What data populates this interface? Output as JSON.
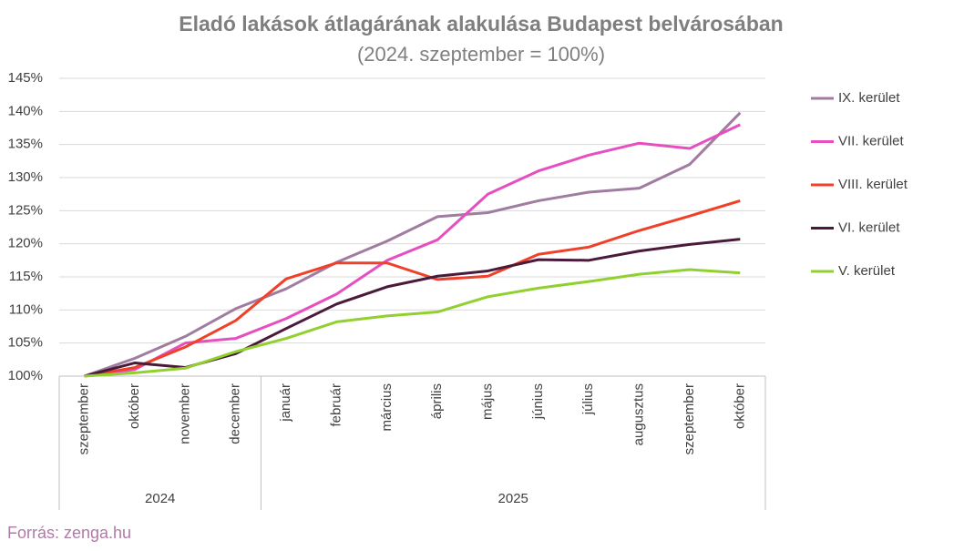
{
  "chart_data": {
    "type": "line",
    "title": "Eladó lakások átlagárának alakulása Budapest belvárosában",
    "subtitle": "(2024. szeptember = 100%)",
    "source": "Forrás: zenga.hu",
    "category_groups": [
      {
        "label": "2024",
        "categories": [
          "szeptember",
          "október",
          "november",
          "december"
        ]
      },
      {
        "label": "2025",
        "categories": [
          "január",
          "február",
          "március",
          "április",
          "május",
          "június",
          "július",
          "augusztus",
          "szeptember",
          "október"
        ]
      }
    ],
    "ylim": [
      100,
      145
    ],
    "yticks": [
      {
        "value": 100,
        "label": "100%"
      },
      {
        "value": 105,
        "label": "105%"
      },
      {
        "value": 110,
        "label": "110%"
      },
      {
        "value": 115,
        "label": "115%"
      },
      {
        "value": 120,
        "label": "120%"
      },
      {
        "value": 125,
        "label": "125%"
      },
      {
        "value": 130,
        "label": "130%"
      },
      {
        "value": 135,
        "label": "135%"
      },
      {
        "value": 140,
        "label": "140%"
      },
      {
        "value": 145,
        "label": "145%"
      }
    ],
    "grid": true,
    "legend": "right",
    "series": [
      {
        "name": "IX. kerület",
        "color": "#a07ca0",
        "values": [
          100,
          102.7,
          106,
          110.2,
          113.2,
          117.2,
          120.4,
          124.1,
          124.7,
          126.5,
          127.8,
          128.4,
          132,
          139.8
        ]
      },
      {
        "name": "VII. kerület",
        "color": "#e64fc0",
        "values": [
          100,
          101,
          105,
          105.7,
          108.7,
          112.4,
          117.5,
          120.6,
          127.5,
          131,
          133.4,
          135.2,
          134.4,
          138
        ]
      },
      {
        "name": "VIII. kerület",
        "color": "#f0402a",
        "values": [
          100,
          101.3,
          104.4,
          108.4,
          114.7,
          117.1,
          117.1,
          114.6,
          115.1,
          118.4,
          119.5,
          122,
          124.2,
          126.5
        ]
      },
      {
        "name": "VI. kerület",
        "color": "#4a1a3a",
        "values": [
          100,
          102,
          101.3,
          103.4,
          107.2,
          110.9,
          113.5,
          115.1,
          115.9,
          117.6,
          117.5,
          118.9,
          119.9,
          120.7
        ]
      },
      {
        "name": "V. kerület",
        "color": "#92d030",
        "values": [
          100,
          100.5,
          101.2,
          103.7,
          105.7,
          108.2,
          109.1,
          109.7,
          112,
          113.3,
          114.3,
          115.4,
          116.1,
          115.6
        ]
      }
    ]
  }
}
